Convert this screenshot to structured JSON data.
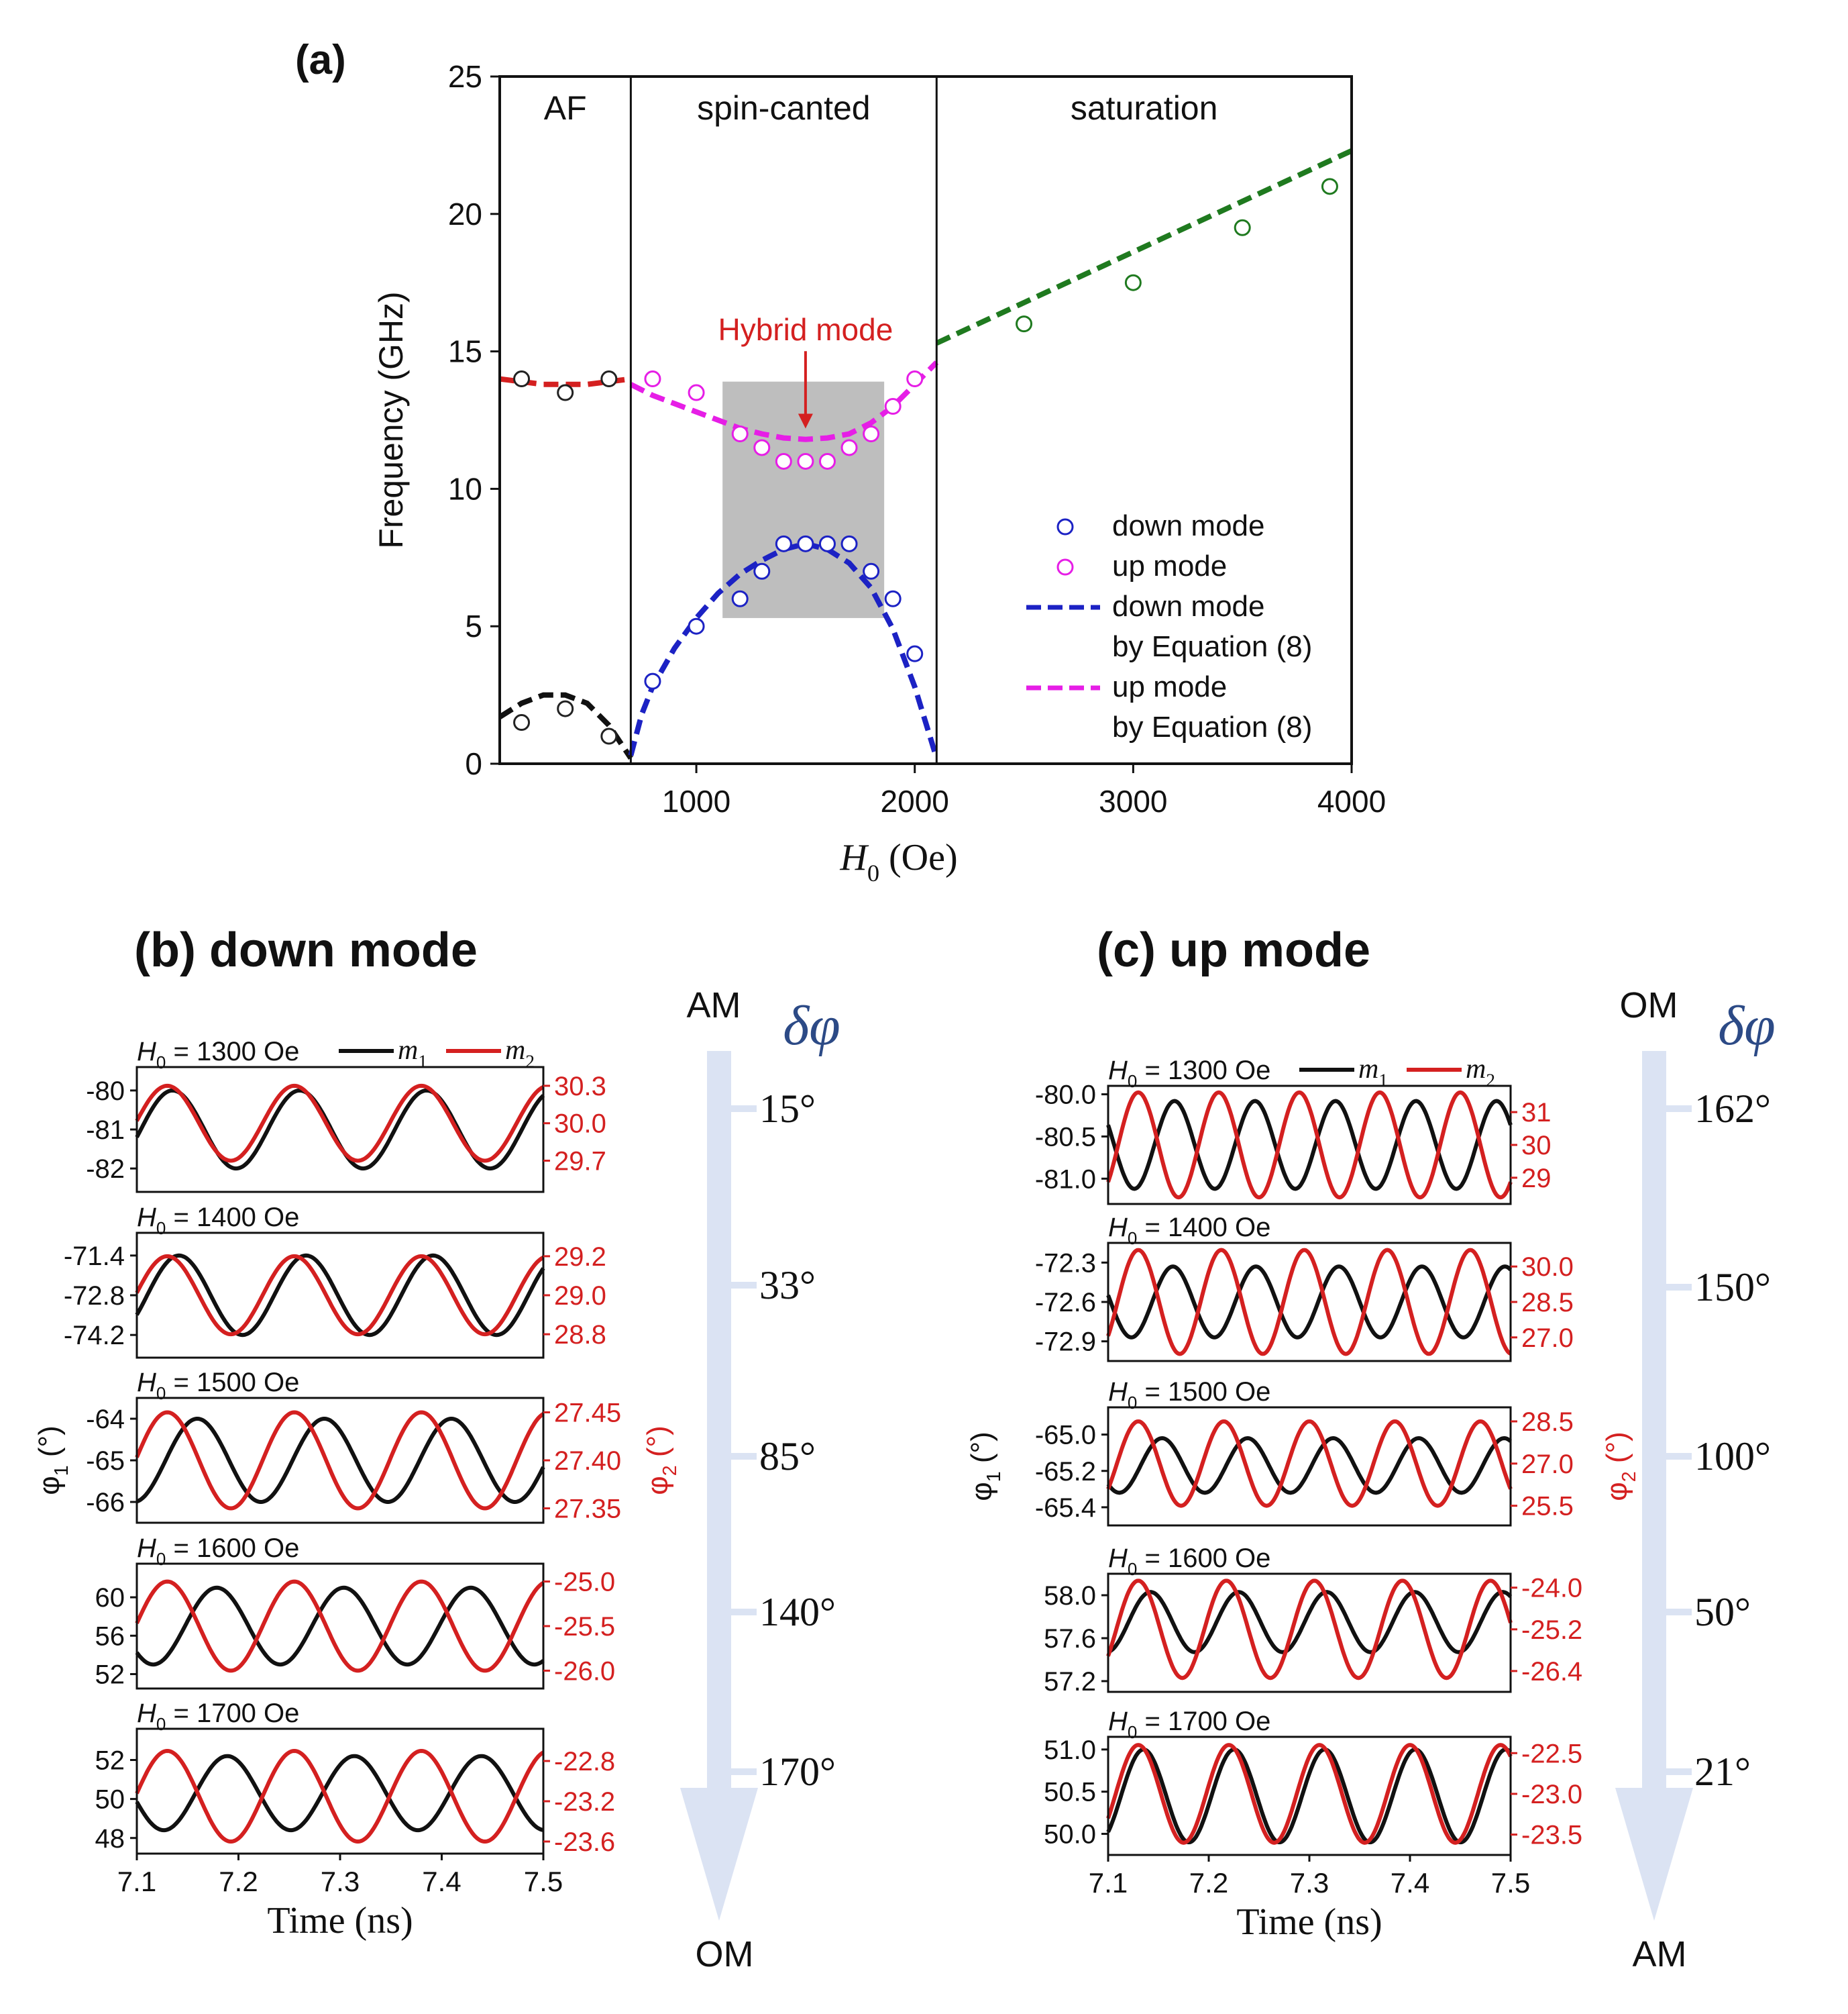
{
  "colors": {
    "black": "#111111",
    "red": "#d42020",
    "af_line": "#111111",
    "af_circle": "#222222",
    "hybrid_label": "#d42020",
    "magenta": "#e61ee6",
    "blue": "#1c22c4",
    "green": "#1f7a1f",
    "gray_box": "#bebebe",
    "arrow_fill": "#dbe3f3",
    "delta_phi": "#2c4a86"
  },
  "chart_data": [
    {
      "id": "a",
      "type": "scatter",
      "panel_label": "(a)",
      "xlabel_main": "H",
      "xlabel_sub": "0",
      "xlabel_unit": " (Oe)",
      "ylabel": "Frequency (GHz)",
      "xlim": [
        100,
        4000
      ],
      "ylim": [
        0,
        25
      ],
      "xticks": [
        "1000",
        "2000",
        "3000",
        "4000"
      ],
      "xtick_values": [
        1000,
        2000,
        3000,
        4000
      ],
      "yticks": [
        "0",
        "5",
        "10",
        "15",
        "20",
        "25"
      ],
      "ytick_values": [
        0,
        5,
        10,
        15,
        20,
        25
      ],
      "region_dividers": [
        700,
        2100
      ],
      "regions": [
        {
          "label": "AF",
          "x_center": 400
        },
        {
          "label": "spin-canted",
          "x_center": 1400
        },
        {
          "label": "saturation",
          "x_center": 3050
        }
      ],
      "shaded_box": {
        "x": [
          1120,
          1860
        ],
        "y": [
          5.3,
          13.9
        ]
      },
      "annotation": {
        "text": "Hybrid mode",
        "x": 1500,
        "y": 15.4,
        "arrow_to_y": 12.0
      },
      "series_points": [
        {
          "name": "AF low",
          "color_key": "af_circle",
          "x": [
            200,
            400,
            600
          ],
          "y": [
            1.5,
            2.0,
            1.0
          ]
        },
        {
          "name": "AF high",
          "color_key": "af_circle",
          "x": [
            200,
            400,
            600
          ],
          "y": [
            14.0,
            13.5,
            14.0
          ]
        },
        {
          "name": "up mode",
          "color_key": "magenta",
          "x": [
            800,
            1000,
            1200,
            1300,
            1400,
            1500,
            1600,
            1700,
            1800,
            1900,
            2000
          ],
          "y": [
            14.0,
            13.5,
            12.0,
            11.5,
            11.0,
            11.0,
            11.0,
            11.5,
            12.0,
            13.0,
            14.0
          ]
        },
        {
          "name": "down mode",
          "color_key": "blue",
          "x": [
            800,
            1000,
            1200,
            1300,
            1400,
            1500,
            1600,
            1700,
            1800,
            1900,
            2000
          ],
          "y": [
            3.0,
            5.0,
            6.0,
            7.0,
            8.0,
            8.0,
            8.0,
            8.0,
            7.0,
            6.0,
            4.0
          ]
        },
        {
          "name": "saturation",
          "color_key": "green",
          "x": [
            2500,
            3000,
            3500,
            3900
          ],
          "y": [
            16.0,
            17.5,
            19.5,
            21.0
          ]
        }
      ],
      "series_lines": [
        {
          "name": "AF low fit",
          "color_key": "af_line",
          "x": [
            100,
            200,
            300,
            400,
            500,
            600,
            700
          ],
          "y": [
            1.7,
            2.2,
            2.5,
            2.5,
            2.2,
            1.4,
            0.2
          ]
        },
        {
          "name": "AF high fit",
          "color_key": "red",
          "x": [
            100,
            200,
            300,
            400,
            500,
            600,
            700
          ],
          "y": [
            14.0,
            13.9,
            13.8,
            13.8,
            13.8,
            13.9,
            14.0
          ]
        },
        {
          "name": "up mode by Equation (8)",
          "color_key": "magenta",
          "x": [
            700,
            800,
            900,
            1000,
            1100,
            1200,
            1300,
            1400,
            1500,
            1600,
            1700,
            1800,
            1900,
            2000,
            2100
          ],
          "y": [
            13.8,
            13.4,
            13.1,
            12.8,
            12.5,
            12.2,
            12.0,
            11.85,
            11.8,
            11.85,
            12.0,
            12.4,
            13.0,
            13.8,
            14.6
          ]
        },
        {
          "name": "down mode by Equation (8)",
          "color_key": "blue",
          "x": [
            700,
            750,
            800,
            900,
            1000,
            1100,
            1200,
            1300,
            1400,
            1500,
            1600,
            1700,
            1800,
            1900,
            2000,
            2050,
            2100
          ],
          "y": [
            0.3,
            1.8,
            2.8,
            4.2,
            5.3,
            6.2,
            6.9,
            7.4,
            7.8,
            8.0,
            7.8,
            7.3,
            6.4,
            4.9,
            2.8,
            1.5,
            0.2
          ]
        },
        {
          "name": "saturation fit",
          "color_key": "green",
          "x": [
            2100,
            4000
          ],
          "y": [
            15.3,
            22.3
          ]
        }
      ],
      "legend": {
        "placement": "lower-right",
        "entries": [
          {
            "kind": "circle",
            "color_key": "blue",
            "label": "down mode"
          },
          {
            "kind": "circle",
            "color_key": "magenta",
            "label": "up mode"
          },
          {
            "kind": "dash",
            "color_key": "blue",
            "label": "down mode",
            "label2": "by Equation (8)"
          },
          {
            "kind": "dash",
            "color_key": "magenta",
            "label": "up mode",
            "label2": "by Equation (8)"
          }
        ]
      }
    },
    {
      "id": "b",
      "type": "line",
      "panel_title": "(b) down mode",
      "xlim": [
        7.1,
        7.5
      ],
      "xticks": [
        "7.1",
        "7.2",
        "7.3",
        "7.4",
        "7.5"
      ],
      "xtick_values": [
        7.1,
        7.2,
        7.3,
        7.4,
        7.5
      ],
      "xlabel": "Time (ns)",
      "ylabel_left_main": "φ",
      "ylabel_left_sub": "1",
      "ylabel_left_unit": " (°)",
      "ylabel_right_main": "φ",
      "ylabel_right_sub": "2",
      "ylabel_right_unit": " (°)",
      "legend": {
        "m1_main": "m",
        "m1_sub": "1",
        "m2_main": "m",
        "m2_sub": "2"
      },
      "arrow": {
        "top": "AM",
        "bottom": "OM",
        "symbol": "δφ",
        "angles": [
          "15°",
          "33°",
          "85°",
          "140°",
          "170°"
        ]
      },
      "subplots": [
        {
          "field_main": "H",
          "field_sub": "0",
          "field_value": " = 1300 Oe",
          "period": 0.125,
          "m1": {
            "amp": 1.0,
            "mean": -81.0,
            "phase_deg": 15
          },
          "m2": {
            "amp": 0.3,
            "mean": 30.0,
            "phase_deg": 0
          },
          "left_ylim": [
            -82.6,
            -79.4
          ],
          "right_ylim": [
            29.45,
            30.45
          ],
          "left_ticks": [
            "-80",
            "-81",
            "-82"
          ],
          "left_tick_values": [
            -80,
            -81,
            -82
          ],
          "right_ticks": [
            "30.3",
            "30.0",
            "29.7"
          ],
          "right_tick_values": [
            30.3,
            30.0,
            29.7
          ]
        },
        {
          "field_main": "H",
          "field_sub": "0",
          "field_value": " = 1400 Oe",
          "period": 0.125,
          "m1": {
            "amp": 1.4,
            "mean": -72.8,
            "phase_deg": 33
          },
          "m2": {
            "amp": 0.2,
            "mean": 29.0,
            "phase_deg": 0
          },
          "left_ylim": [
            -75.0,
            -70.6
          ],
          "right_ylim": [
            28.68,
            29.32
          ],
          "left_ticks": [
            "-71.4",
            "-72.8",
            "-74.2"
          ],
          "left_tick_values": [
            -71.4,
            -72.8,
            -74.2
          ],
          "right_ticks": [
            "29.2",
            "29.0",
            "28.8"
          ],
          "right_tick_values": [
            29.2,
            29.0,
            28.8
          ]
        },
        {
          "field_main": "H",
          "field_sub": "0",
          "field_value": " = 1500 Oe",
          "period": 0.125,
          "m1": {
            "amp": 1.0,
            "mean": -65.0,
            "phase_deg": 85
          },
          "m2": {
            "amp": 0.05,
            "mean": 27.4,
            "phase_deg": 0
          },
          "left_ylim": [
            -66.5,
            -63.5
          ],
          "right_ylim": [
            27.335,
            27.465
          ],
          "left_ticks": [
            "-64",
            "-65",
            "-66"
          ],
          "left_tick_values": [
            -64,
            -65,
            -66
          ],
          "right_ticks": [
            "27.45",
            "27.40",
            "27.35"
          ],
          "right_tick_values": [
            27.45,
            27.4,
            27.35
          ]
        },
        {
          "field_main": "H",
          "field_sub": "0",
          "field_value": " = 1600 Oe",
          "period": 0.125,
          "m1": {
            "amp": 4.0,
            "mean": 57.0,
            "phase_deg": 140
          },
          "m2": {
            "amp": 0.5,
            "mean": -25.5,
            "phase_deg": 0
          },
          "left_ylim": [
            50.5,
            63.5
          ],
          "right_ylim": [
            -26.2,
            -24.8
          ],
          "left_ticks": [
            "60",
            "56",
            "52"
          ],
          "left_tick_values": [
            60,
            56,
            52
          ],
          "right_ticks": [
            "-25.0",
            "-25.5",
            "-26.0"
          ],
          "right_tick_values": [
            -25.0,
            -25.5,
            -26.0
          ]
        },
        {
          "field_main": "H",
          "field_sub": "0",
          "field_value": " = 1700 Oe",
          "period": 0.125,
          "m1": {
            "amp": 1.9,
            "mean": 50.3,
            "phase_deg": 170
          },
          "m2": {
            "amp": 0.45,
            "mean": -23.15,
            "phase_deg": 0
          },
          "left_ylim": [
            47.2,
            53.6
          ],
          "right_ylim": [
            -23.72,
            -22.48
          ],
          "left_ticks": [
            "52",
            "50",
            "48"
          ],
          "left_tick_values": [
            52,
            50,
            48
          ],
          "right_ticks": [
            "-22.8",
            "-23.2",
            "-23.6"
          ],
          "right_tick_values": [
            -22.8,
            -23.2,
            -23.6
          ]
        }
      ]
    },
    {
      "id": "c",
      "type": "line",
      "panel_title": "(c) up mode",
      "xlim": [
        7.1,
        7.5
      ],
      "xticks": [
        "7.1",
        "7.2",
        "7.3",
        "7.4",
        "7.5"
      ],
      "xtick_values": [
        7.1,
        7.2,
        7.3,
        7.4,
        7.5
      ],
      "xlabel": "Time (ns)",
      "ylabel_left_main": "φ",
      "ylabel_left_sub": "1",
      "ylabel_left_unit": " (°)",
      "ylabel_right_main": "φ",
      "ylabel_right_sub": "2",
      "ylabel_right_unit": " (°)",
      "legend": {
        "m1_main": "m",
        "m1_sub": "1",
        "m2_main": "m",
        "m2_sub": "2"
      },
      "arrow": {
        "top": "OM",
        "bottom": "AM",
        "symbol": "δφ",
        "angles": [
          "162°",
          "150°",
          "100°",
          "50°",
          "21°"
        ]
      },
      "subplots": [
        {
          "field_main": "H",
          "field_sub": "0",
          "field_value": " = 1300 Oe",
          "period": 0.08,
          "m1": {
            "amp": 0.52,
            "mean": -80.6,
            "phase_deg": 162
          },
          "m2": {
            "amp": 1.6,
            "mean": 30.0,
            "phase_deg": 0
          },
          "left_ylim": [
            -81.3,
            -79.9
          ],
          "right_ylim": [
            28.2,
            31.8
          ],
          "left_ticks": [
            "-80.0",
            "-80.5",
            "-81.0"
          ],
          "left_tick_values": [
            -80.0,
            -80.5,
            -81.0
          ],
          "right_ticks": [
            "31",
            "30",
            "29"
          ],
          "right_tick_values": [
            31,
            30,
            29
          ]
        },
        {
          "field_main": "H",
          "field_sub": "0",
          "field_value": " = 1400 Oe",
          "period": 0.0825,
          "m1": {
            "amp": 0.27,
            "mean": -72.6,
            "phase_deg": 150
          },
          "m2": {
            "amp": 2.2,
            "mean": 28.5,
            "phase_deg": 0
          },
          "left_ylim": [
            -73.05,
            -72.15
          ],
          "right_ylim": [
            26.0,
            31.0
          ],
          "left_ticks": [
            "-72.3",
            "-72.6",
            "-72.9"
          ],
          "left_tick_values": [
            -72.3,
            -72.6,
            -72.9
          ],
          "right_ticks": [
            "30.0",
            "28.5",
            "27.0"
          ],
          "right_tick_values": [
            30.0,
            28.5,
            27.0
          ]
        },
        {
          "field_main": "H",
          "field_sub": "0",
          "field_value": " = 1500 Oe",
          "period": 0.085,
          "m1": {
            "amp": 0.15,
            "mean": -65.17,
            "phase_deg": 100
          },
          "m2": {
            "amp": 1.5,
            "mean": 27.0,
            "phase_deg": 0
          },
          "left_ylim": [
            -65.5,
            -64.85
          ],
          "right_ylim": [
            24.8,
            29.0
          ],
          "left_ticks": [
            "-65.0",
            "-65.2",
            "-65.4"
          ],
          "left_tick_values": [
            -65.0,
            -65.2,
            -65.4
          ],
          "right_ticks": [
            "28.5",
            "27.0",
            "25.5"
          ],
          "right_tick_values": [
            28.5,
            27.0,
            25.5
          ]
        },
        {
          "field_main": "H",
          "field_sub": "0",
          "field_value": " = 1600 Oe",
          "period": 0.0875,
          "m1": {
            "amp": 0.28,
            "mean": 57.75,
            "phase_deg": 50
          },
          "m2": {
            "amp": 1.4,
            "mean": -25.2,
            "phase_deg": 0
          },
          "left_ylim": [
            57.1,
            58.2
          ],
          "right_ylim": [
            -27.0,
            -23.6
          ],
          "left_ticks": [
            "58.0",
            "57.6",
            "57.2"
          ],
          "left_tick_values": [
            58.0,
            57.6,
            57.2
          ],
          "right_ticks": [
            "-24.0",
            "-25.2",
            "-26.4"
          ],
          "right_tick_values": [
            -24.0,
            -25.2,
            -26.4
          ]
        },
        {
          "field_main": "H",
          "field_sub": "0",
          "field_value": " = 1700 Oe",
          "period": 0.09,
          "m1": {
            "amp": 0.55,
            "mean": 50.45,
            "phase_deg": 21
          },
          "m2": {
            "amp": 0.6,
            "mean": -23.0,
            "phase_deg": 0
          },
          "left_ylim": [
            49.75,
            51.15
          ],
          "right_ylim": [
            -23.75,
            -22.3
          ],
          "left_ticks": [
            "51.0",
            "50.5",
            "50.0"
          ],
          "left_tick_values": [
            51.0,
            50.5,
            50.0
          ],
          "right_ticks": [
            "-22.5",
            "-23.0",
            "-23.5"
          ],
          "right_tick_values": [
            -22.5,
            -23.0,
            -23.5
          ]
        }
      ]
    }
  ]
}
